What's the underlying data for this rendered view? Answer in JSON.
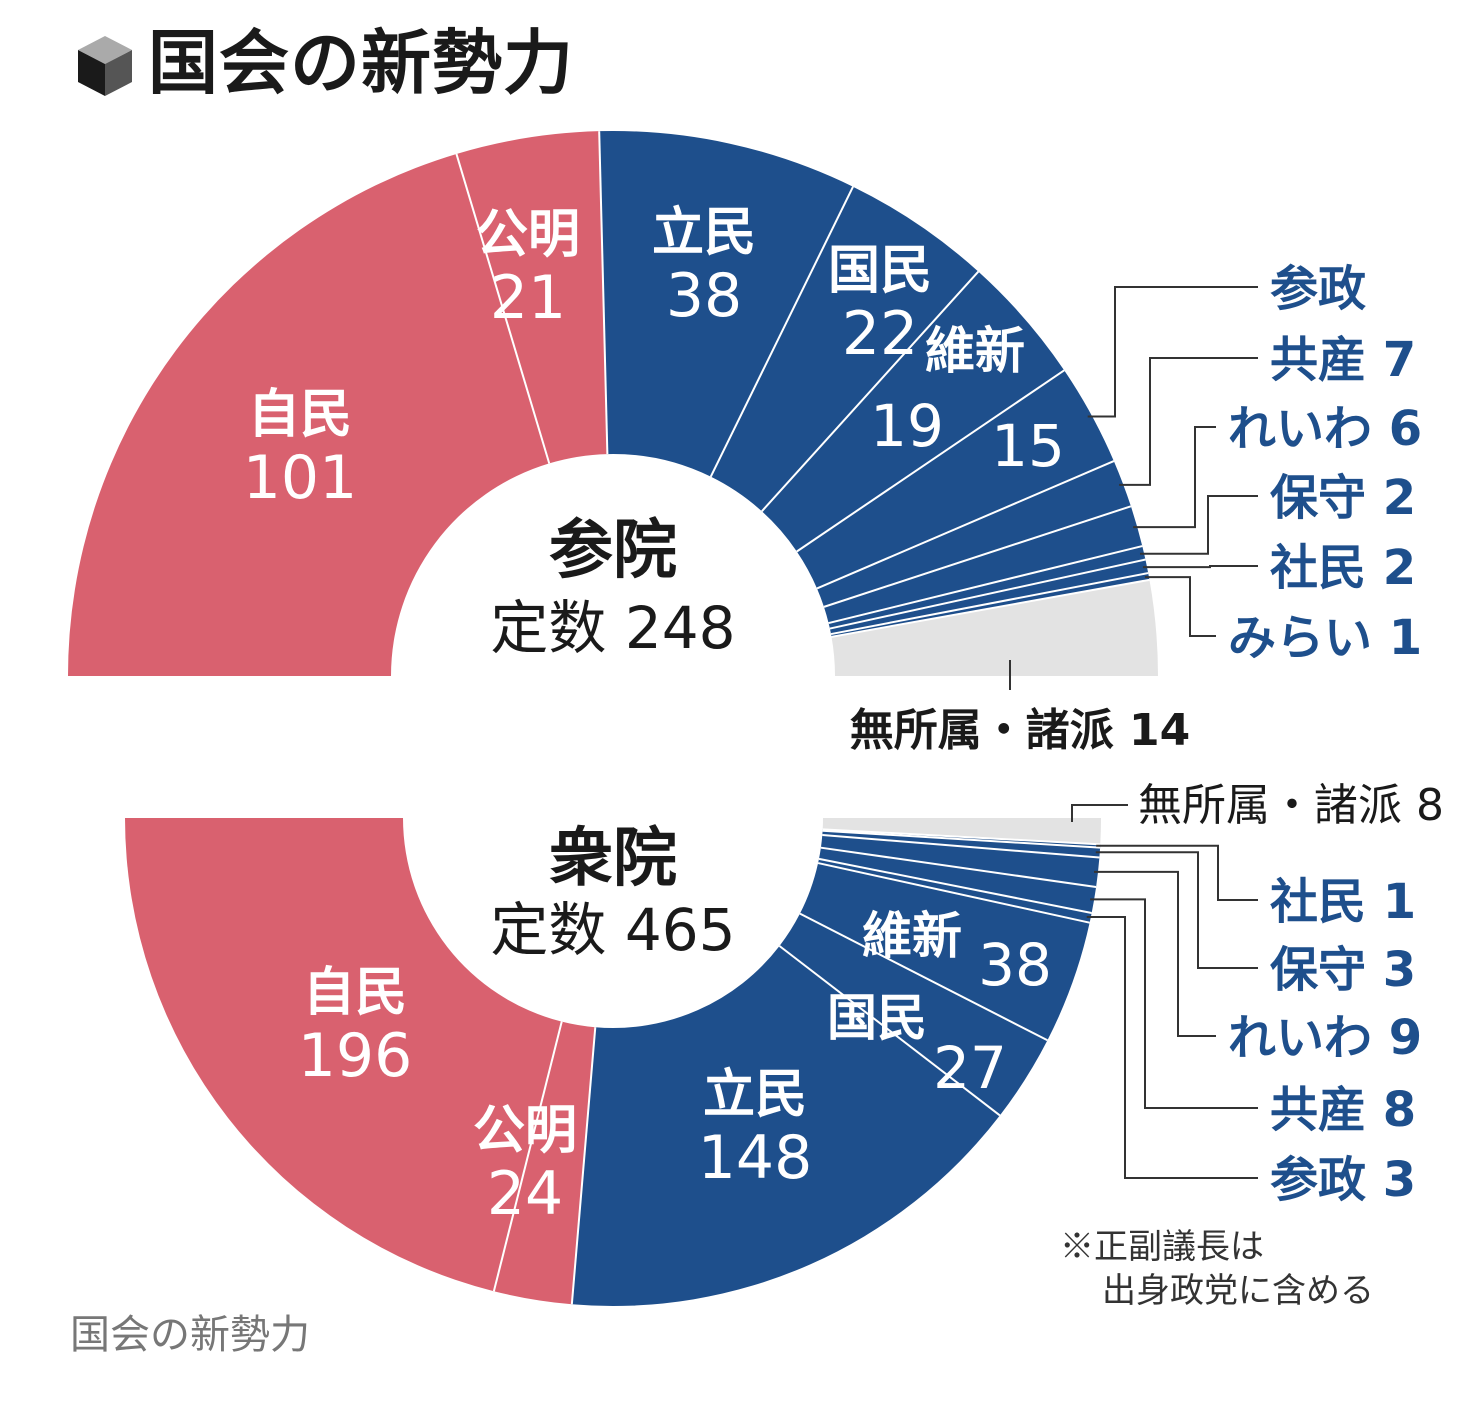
{
  "title": "国会の新勢力",
  "caption": "国会の新勢力",
  "note": {
    "line1": "※正副議長は",
    "line2": "出身政党に含める"
  },
  "colors": {
    "ruling": "#d9616f",
    "opposition": "#1e4f8c",
    "independent": "#e3e3e3",
    "label_blue": "#1e4f8c"
  },
  "chart_data": [
    {
      "type": "pie",
      "subtype": "half-donut",
      "chamber": "参院",
      "total_label": "定数",
      "total": 248,
      "series": [
        {
          "name": "自民",
          "value": 101,
          "group": "ruling"
        },
        {
          "name": "公明",
          "value": 21,
          "group": "ruling"
        },
        {
          "name": "立民",
          "value": 38,
          "group": "opposition"
        },
        {
          "name": "国民",
          "value": 22,
          "group": "opposition"
        },
        {
          "name": "維新",
          "value": 19,
          "group": "opposition"
        },
        {
          "name": "参政",
          "value": 15,
          "group": "opposition"
        },
        {
          "name": "共産",
          "value": 7,
          "group": "opposition"
        },
        {
          "name": "れいわ",
          "value": 6,
          "group": "opposition"
        },
        {
          "name": "保守",
          "value": 2,
          "group": "opposition"
        },
        {
          "name": "社民",
          "value": 2,
          "group": "opposition"
        },
        {
          "name": "みらい",
          "value": 1,
          "group": "opposition"
        },
        {
          "name": "無所属・諸派",
          "value": 14,
          "group": "independent"
        }
      ]
    },
    {
      "type": "pie",
      "subtype": "half-donut",
      "chamber": "衆院",
      "total_label": "定数",
      "total": 465,
      "series": [
        {
          "name": "自民",
          "value": 196,
          "group": "ruling"
        },
        {
          "name": "公明",
          "value": 24,
          "group": "ruling"
        },
        {
          "name": "立民",
          "value": 148,
          "group": "opposition"
        },
        {
          "name": "国民",
          "value": 27,
          "group": "opposition"
        },
        {
          "name": "維新",
          "value": 38,
          "group": "opposition"
        },
        {
          "name": "参政",
          "value": 3,
          "group": "opposition"
        },
        {
          "name": "共産",
          "value": 8,
          "group": "opposition"
        },
        {
          "name": "れいわ",
          "value": 9,
          "group": "opposition"
        },
        {
          "name": "保守",
          "value": 3,
          "group": "opposition"
        },
        {
          "name": "社民",
          "value": 1,
          "group": "opposition"
        },
        {
          "name": "無所属・諸派",
          "value": 8,
          "group": "independent"
        }
      ]
    }
  ]
}
